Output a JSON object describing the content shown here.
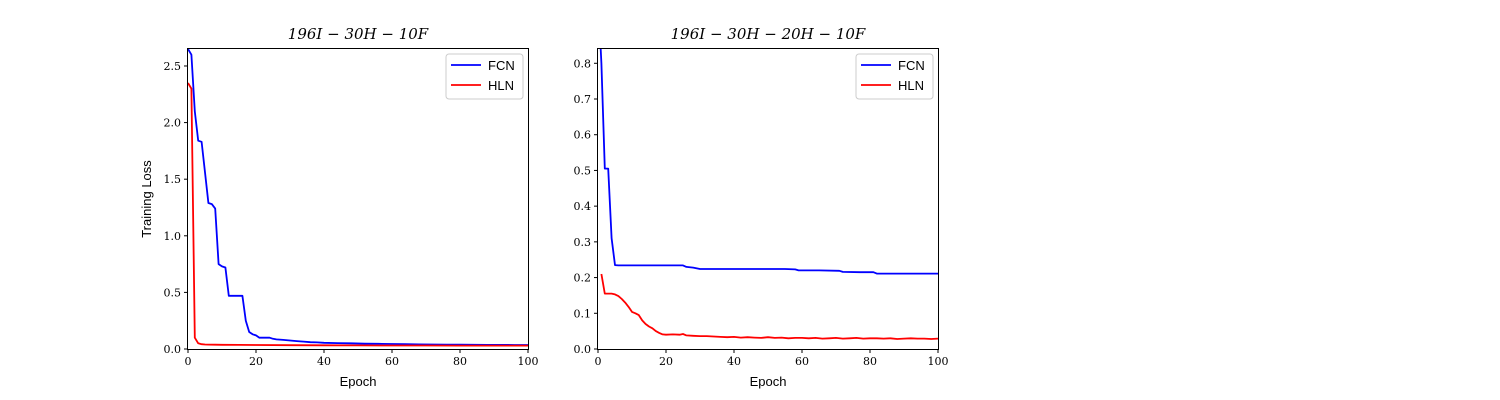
{
  "chart_data": [
    {
      "type": "line",
      "title": "196I − 30H − 10F",
      "xlabel": "Epoch",
      "ylabel": "Training Loss",
      "xlim": [
        0,
        100
      ],
      "ylim": [
        0,
        2.65
      ],
      "xticks": [
        0,
        20,
        40,
        60,
        80,
        100
      ],
      "yticks": [
        0.0,
        0.5,
        1.0,
        1.5,
        2.0,
        2.5
      ],
      "ytick_labels": [
        "0.0",
        "0.5",
        "1.0",
        "1.5",
        "2.0",
        "2.5"
      ],
      "legend_position": "top-right",
      "series": [
        {
          "name": "FCN",
          "color": "#0000ff",
          "x": [
            0,
            1,
            2,
            3,
            4,
            5,
            6,
            7,
            8,
            9,
            10,
            11,
            12,
            13,
            14,
            15,
            16,
            17,
            18,
            19,
            20,
            21,
            22,
            23,
            24,
            25,
            26,
            28,
            30,
            32,
            34,
            36,
            38,
            40,
            44,
            48,
            52,
            56,
            60,
            64,
            68,
            72,
            76,
            80,
            84,
            88,
            92,
            96,
            100
          ],
          "y": [
            2.65,
            2.6,
            2.1,
            1.84,
            1.83,
            1.56,
            1.29,
            1.28,
            1.24,
            0.75,
            0.73,
            0.72,
            0.47,
            0.47,
            0.47,
            0.47,
            0.47,
            0.25,
            0.15,
            0.13,
            0.12,
            0.1,
            0.1,
            0.1,
            0.1,
            0.09,
            0.085,
            0.08,
            0.075,
            0.07,
            0.065,
            0.06,
            0.058,
            0.055,
            0.052,
            0.05,
            0.048,
            0.046,
            0.044,
            0.042,
            0.041,
            0.04,
            0.039,
            0.038,
            0.037,
            0.036,
            0.036,
            0.035,
            0.035
          ]
        },
        {
          "name": "HLN",
          "color": "#ff0000",
          "x": [
            0,
            1,
            2,
            3,
            4,
            5,
            6,
            8,
            10,
            15,
            20,
            30,
            40,
            50,
            60,
            70,
            80,
            90,
            100
          ],
          "y": [
            2.35,
            2.3,
            0.1,
            0.05,
            0.042,
            0.04,
            0.039,
            0.038,
            0.037,
            0.036,
            0.035,
            0.034,
            0.033,
            0.032,
            0.031,
            0.031,
            0.03,
            0.03,
            0.03
          ]
        }
      ]
    },
    {
      "type": "line",
      "title": "196I − 30H − 20H − 10F",
      "xlabel": "Epoch",
      "ylabel": "",
      "xlim": [
        0,
        100
      ],
      "ylim": [
        0,
        0.84
      ],
      "xticks": [
        0,
        20,
        40,
        60,
        80,
        100
      ],
      "yticks": [
        0.0,
        0.1,
        0.2,
        0.3,
        0.4,
        0.5,
        0.6,
        0.7,
        0.8
      ],
      "ytick_labels": [
        "0.0",
        "0.1",
        "0.2",
        "0.3",
        "0.4",
        "0.5",
        "0.6",
        "0.7",
        "0.8"
      ],
      "legend_position": "top-right",
      "series": [
        {
          "name": "FCN",
          "color": "#0000ff",
          "x": [
            0.8,
            1,
            2,
            3,
            4,
            5,
            6,
            10,
            15,
            20,
            25,
            26,
            28,
            30,
            35,
            40,
            45,
            50,
            55,
            58,
            59,
            65,
            71,
            72,
            77,
            81,
            82,
            90,
            100
          ],
          "y": [
            0.84,
            0.8,
            0.505,
            0.505,
            0.31,
            0.235,
            0.234,
            0.234,
            0.234,
            0.234,
            0.234,
            0.23,
            0.228,
            0.224,
            0.224,
            0.224,
            0.224,
            0.224,
            0.224,
            0.223,
            0.22,
            0.22,
            0.219,
            0.216,
            0.215,
            0.215,
            0.211,
            0.211,
            0.211
          ]
        },
        {
          "name": "HLN",
          "color": "#ff0000",
          "x": [
            1,
            2,
            3,
            4,
            5,
            6,
            7,
            8,
            9,
            10,
            11,
            12,
            13,
            14,
            15,
            16,
            17,
            18,
            19,
            20,
            22,
            24,
            25,
            26,
            28,
            30,
            32,
            34,
            36,
            38,
            40,
            42,
            44,
            46,
            48,
            50,
            52,
            54,
            56,
            58,
            60,
            62,
            64,
            66,
            68,
            70,
            72,
            74,
            76,
            78,
            80,
            82,
            84,
            86,
            88,
            90,
            92,
            94,
            96,
            98,
            100
          ],
          "y": [
            0.21,
            0.155,
            0.155,
            0.155,
            0.153,
            0.148,
            0.14,
            0.13,
            0.118,
            0.104,
            0.1,
            0.095,
            0.08,
            0.07,
            0.063,
            0.058,
            0.05,
            0.045,
            0.041,
            0.04,
            0.041,
            0.04,
            0.042,
            0.038,
            0.037,
            0.036,
            0.036,
            0.035,
            0.034,
            0.033,
            0.034,
            0.032,
            0.033,
            0.032,
            0.031,
            0.033,
            0.031,
            0.032,
            0.03,
            0.031,
            0.031,
            0.03,
            0.031,
            0.029,
            0.03,
            0.031,
            0.029,
            0.03,
            0.031,
            0.029,
            0.03,
            0.03,
            0.029,
            0.03,
            0.028,
            0.029,
            0.03,
            0.029,
            0.029,
            0.028,
            0.029
          ]
        }
      ]
    }
  ]
}
